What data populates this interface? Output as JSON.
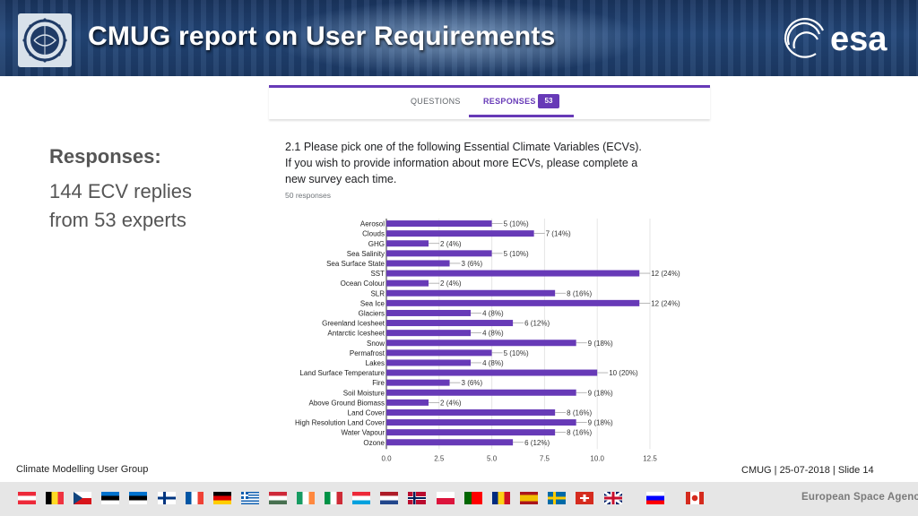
{
  "header": {
    "title": "CMUG report on User Requirements",
    "logo_icon": "cci-globe-icon",
    "esa_logo_text": "esa"
  },
  "survey": {
    "tab_questions": "QUESTIONS",
    "tab_responses": "RESPONSES",
    "response_count": "53",
    "accent": "#673ab7"
  },
  "left_panel": {
    "title": "Responses:",
    "line1": "144 ECV replies",
    "line2": "from 53 experts"
  },
  "question": {
    "line1": "2.1 Please pick one of the following Essential Climate Variables (ECVs).",
    "line2": "If you wish to provide information about more ECVs, please complete a",
    "line3": "new survey each time.",
    "count": "50 responses"
  },
  "chart_data": {
    "type": "bar",
    "orientation": "horizontal",
    "categories": [
      "Aerosol",
      "Clouds",
      "GHG",
      "Sea Salinity",
      "Sea Surface State",
      "SST",
      "Ocean Colour",
      "SLR",
      "Sea Ice",
      "Glaciers",
      "Greenland Icesheet",
      "Antarctic Icesheet",
      "Snow",
      "Permafrost",
      "Lakes",
      "Land Surface Temperature",
      "Fire",
      "Soil Moisture",
      "Above Ground Biomass",
      "Land Cover",
      "High Resolution Land Cover",
      "Water Vapour",
      "Ozone"
    ],
    "values": [
      5,
      7,
      2,
      5,
      3,
      12,
      2,
      8,
      12,
      4,
      6,
      4,
      9,
      5,
      4,
      10,
      3,
      9,
      2,
      8,
      9,
      8,
      6
    ],
    "data_labels": [
      "5 (10%)",
      "7 (14%)",
      "2 (4%)",
      "5 (10%)",
      "3 (6%)",
      "12 (24%)",
      "2 (4%)",
      "8 (16%)",
      "12 (24%)",
      "4 (8%)",
      "6 (12%)",
      "4 (8%)",
      "9 (18%)",
      "5 (10%)",
      "4 (8%)",
      "10 (20%)",
      "3 (6%)",
      "9 (18%)",
      "2 (4%)",
      "8 (16%)",
      "9 (18%)",
      "8 (16%)",
      "6 (12%)"
    ],
    "xticks": [
      "0.0",
      "2.5",
      "5.0",
      "7.5",
      "10.0",
      "12.5"
    ],
    "xlim": [
      0,
      12.5
    ],
    "title": "",
    "xlabel": "",
    "ylabel": "",
    "bar_color": "#673ab7",
    "grid": true
  },
  "footer": {
    "left": "Climate Modelling User Group",
    "right": "CMUG | 25-07-2018 | Slide  14",
    "agency": "European Space Agency"
  },
  "flags": [
    "Austria",
    "Belgium",
    "Czech Republic",
    "Estonia",
    "Estonia",
    "Finland",
    "France",
    "Germany",
    "Greece",
    "Hungary",
    "Ireland",
    "Italy",
    "Luxembourg",
    "Netherlands",
    "Norway",
    "Poland",
    "Portugal",
    "Romania",
    "Spain",
    "Sweden",
    "Switzerland",
    "United Kingdom",
    "Slovenia",
    "Canada"
  ]
}
